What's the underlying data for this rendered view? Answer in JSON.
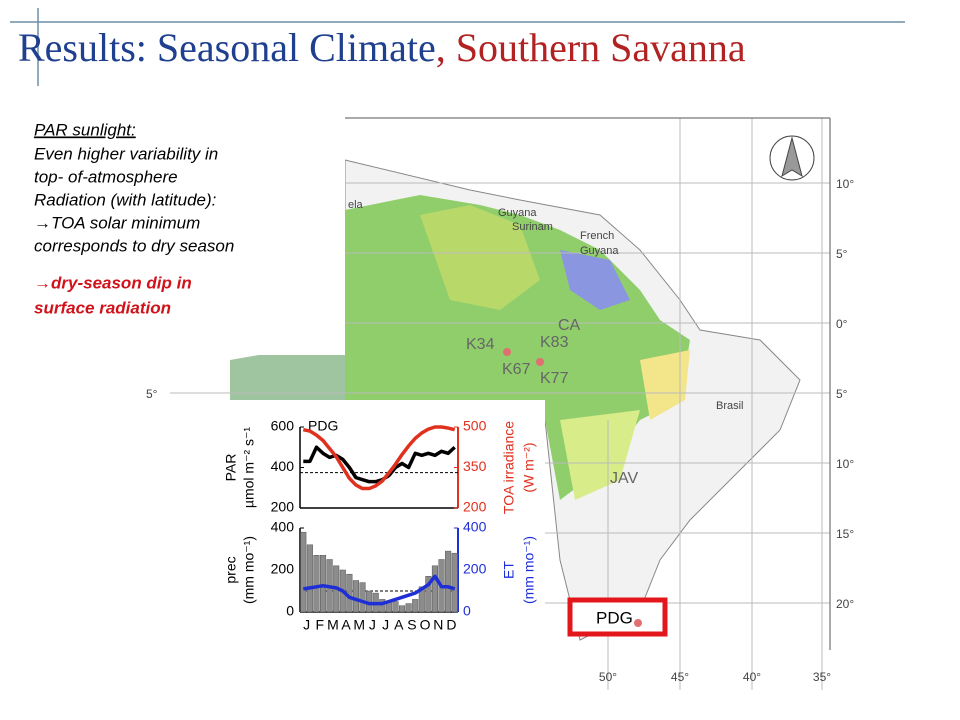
{
  "title": {
    "part1": "Results: Seasonal Climate",
    "part2": ", Southern Savanna"
  },
  "text": {
    "heading": "PAR sunlight:",
    "lines": [
      "Even higher variability in",
      "top- of-atmosphere",
      "Radiation (with latitude):",
      "→TOA solar minimum",
      "corresponds to dry season"
    ],
    "highlight": [
      "→dry-season dip in",
      "surface radiation"
    ]
  },
  "map": {
    "places": [
      "ela",
      "Guyana",
      "Surinam",
      "French",
      "Guyana",
      "CA",
      "K34",
      "K83",
      "K67",
      "K77",
      "Brasil",
      "JAV",
      "PDG"
    ],
    "lat_labels": [
      "10°",
      "5°",
      "0°",
      "5°",
      "10°",
      "15°",
      "20°",
      "5°"
    ],
    "lon_labels": [
      "50°",
      "45°",
      "40°",
      "35°"
    ]
  },
  "chart_data": [
    {
      "type": "line",
      "annotation": "PDG",
      "ylabel": [
        "PAR",
        "µmol m⁻² s⁻¹"
      ],
      "y2label": [
        "TOA irradiance",
        "(W m⁻²)"
      ],
      "ylim": [
        200,
        600
      ],
      "yticks": [
        200,
        400,
        600
      ],
      "y2lim": [
        200,
        500
      ],
      "y2ticks": [
        200,
        350,
        500
      ],
      "y2_color": "#e0301e",
      "reference": 375,
      "series": [
        {
          "name": "PAR",
          "color": "#000000",
          "values": [
            430,
            430,
            500,
            470,
            450,
            460,
            440,
            400,
            350,
            340,
            330,
            330,
            340,
            360,
            400,
            420,
            400,
            470,
            460,
            470,
            460,
            480,
            470,
            500
          ]
        },
        {
          "name": "TOA",
          "color": "#e0301e",
          "axis": "y2",
          "values": [
            490,
            485,
            470,
            450,
            420,
            390,
            350,
            310,
            285,
            272,
            272,
            282,
            300,
            330,
            362,
            398,
            430,
            458,
            478,
            492,
            500,
            500,
            496,
            490
          ]
        }
      ]
    },
    {
      "type": "bar",
      "categories": [
        "J",
        null,
        "F",
        null,
        "M",
        null,
        "A",
        null,
        "M",
        null,
        "J",
        null,
        "J",
        null,
        "A",
        null,
        "S",
        null,
        "O",
        null,
        "N",
        null,
        "D",
        null
      ],
      "ylabel": [
        "prec",
        "(mm mo⁻¹)"
      ],
      "y2label": [
        "ET",
        "(mm mo⁻¹)"
      ],
      "ylim": [
        0,
        400
      ],
      "yticks": [
        0,
        200,
        400
      ],
      "y2lim": [
        0,
        400
      ],
      "y2ticks": [
        0,
        200,
        400
      ],
      "y2_color": "#1f2fd6",
      "reference": 100,
      "series": [
        {
          "name": "prec",
          "color": "#8c8c8c",
          "values": [
            380,
            320,
            270,
            270,
            250,
            220,
            200,
            180,
            150,
            140,
            100,
            90,
            60,
            50,
            50,
            30,
            40,
            60,
            120,
            170,
            220,
            250,
            290,
            280
          ]
        },
        {
          "name": "ET",
          "color": "#1f2fd6",
          "axis": "y2",
          "values": [
            110,
            115,
            120,
            125,
            120,
            115,
            100,
            70,
            60,
            50,
            40,
            40,
            40,
            50,
            60,
            70,
            80,
            90,
            110,
            130,
            170,
            120,
            120,
            110
          ]
        }
      ]
    }
  ]
}
